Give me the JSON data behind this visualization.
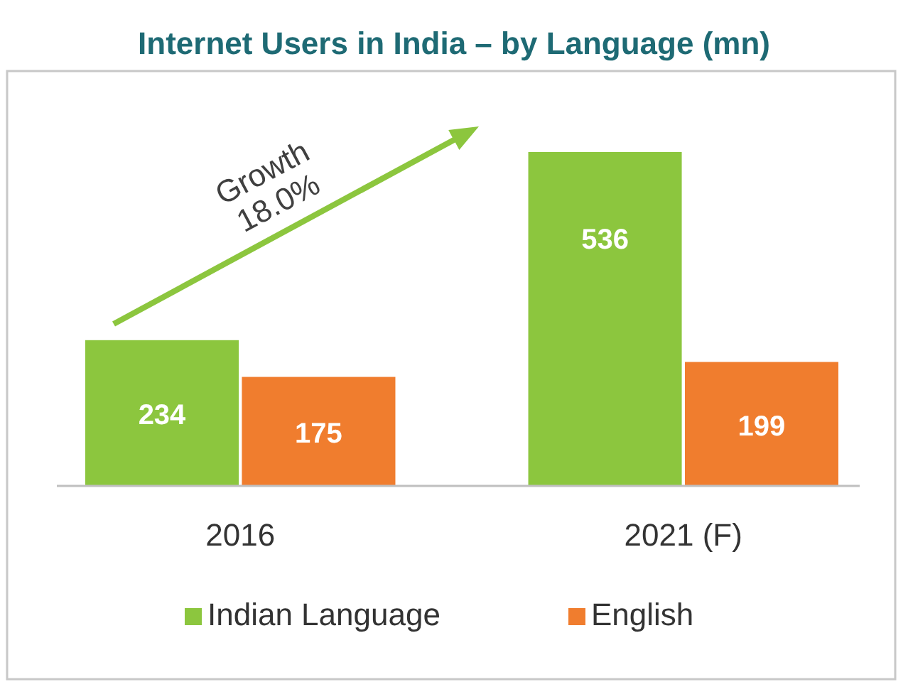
{
  "chart_data": {
    "type": "bar",
    "title": "Internet Users in India – by Language (mn)",
    "categories": [
      "2016",
      "2021 (F)"
    ],
    "series": [
      {
        "name": "Indian Language",
        "color": "#8cc63e",
        "values": [
          234,
          536
        ]
      },
      {
        "name": "English",
        "color": "#f07d2e",
        "values": [
          175,
          199
        ]
      }
    ],
    "data_labels": true,
    "legend": "bottom",
    "annotations": [
      "Growth",
      "18.0%"
    ]
  }
}
